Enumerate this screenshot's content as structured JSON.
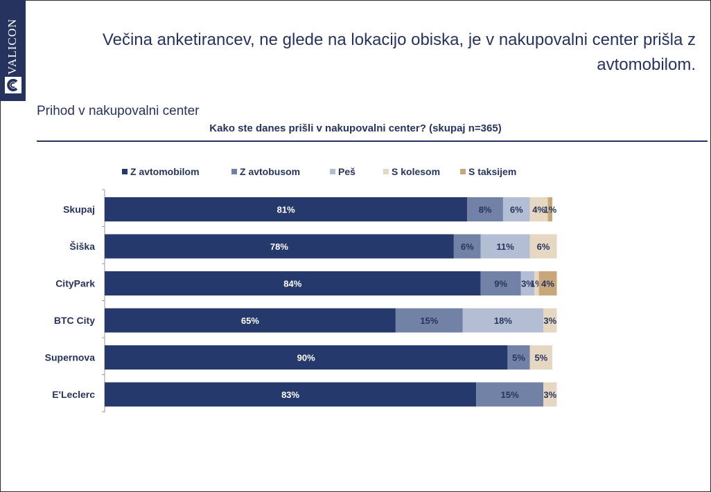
{
  "brand": {
    "name": "VALICON"
  },
  "slide": {
    "title": "Večina anketirancev, ne glede na lokacijo obiska, je v nakupovalni center prišla z avtomobilom.",
    "subtitle": "Prihod v nakupovalni center"
  },
  "colors": {
    "brand": "#26335f"
  },
  "chart_data": {
    "type": "bar",
    "orientation": "horizontal",
    "stacked": true,
    "title": "Kako ste danes prišli v nakupovalni center? (skupaj n=365)",
    "legend_position": "top",
    "categories": [
      "Skupaj",
      "Šiška",
      "CityPark",
      "BTC City",
      "Supernova",
      "E'Leclerc"
    ],
    "series": [
      {
        "name": "Z avtomobilom",
        "color": "#26396d",
        "label_color": "#ffffff",
        "values": [
          81,
          78,
          84,
          65,
          90,
          83
        ]
      },
      {
        "name": "Z avtobusom",
        "color": "#7282a6",
        "label_color": "#26335f",
        "values": [
          8,
          6,
          9,
          15,
          5,
          15
        ]
      },
      {
        "name": "Peš",
        "color": "#b3bdd3",
        "label_color": "#26335f",
        "values": [
          6,
          11,
          3,
          18,
          0,
          0
        ]
      },
      {
        "name": "S kolesom",
        "color": "#e6d7c2",
        "label_color": "#26335f",
        "values": [
          4,
          6,
          1,
          3,
          5,
          3
        ]
      },
      {
        "name": "S taksijem",
        "color": "#c8a87a",
        "label_color": "#26335f",
        "values": [
          1,
          0,
          4,
          0,
          0,
          0
        ]
      }
    ],
    "value_suffix": "%",
    "xlim": [
      0,
      100
    ],
    "grid": false
  }
}
